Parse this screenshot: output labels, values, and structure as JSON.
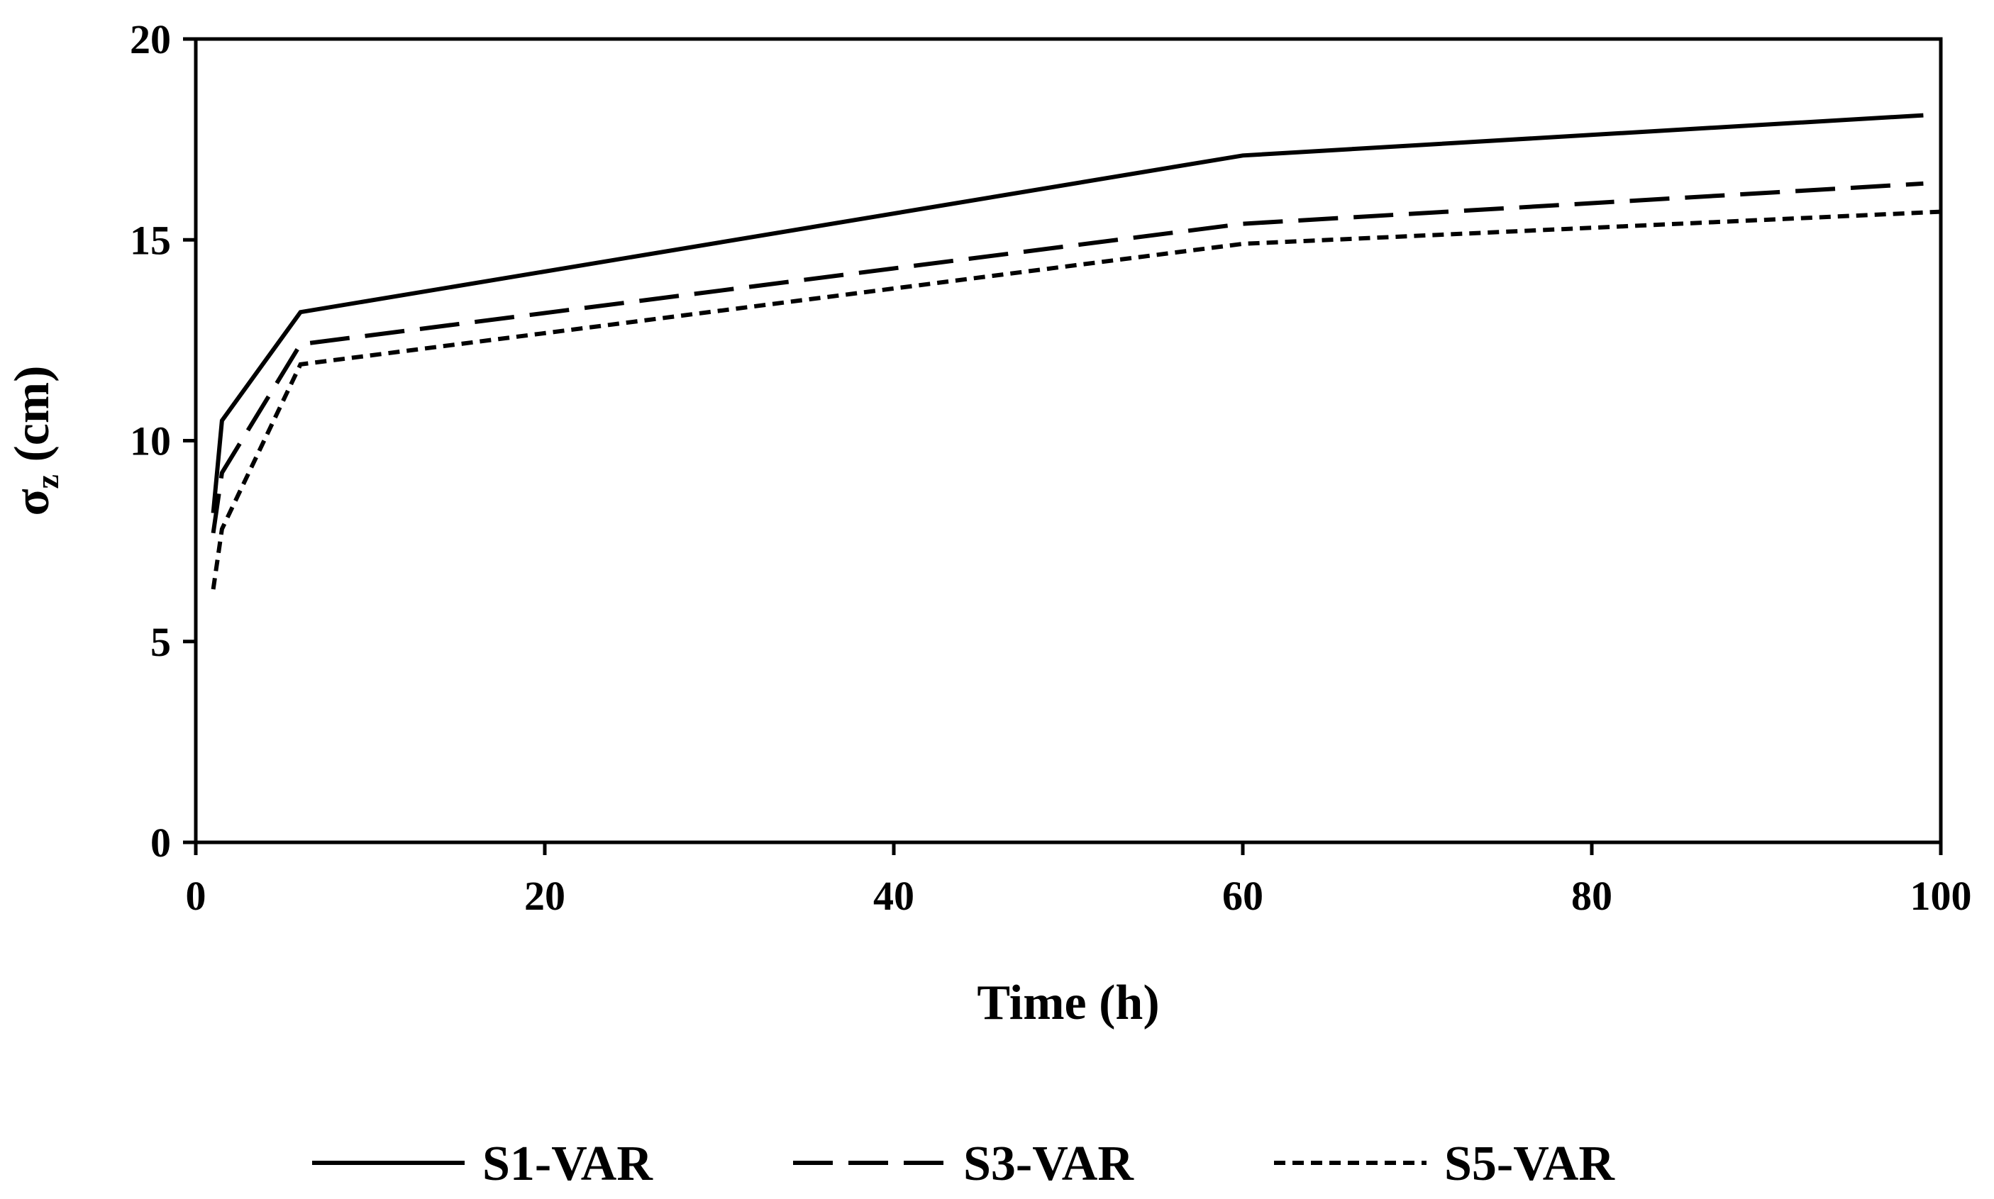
{
  "chart_data": {
    "type": "line",
    "title": "",
    "xlabel": "Time (h)",
    "ylabel_main": "σ",
    "ylabel_sub": "z",
    "ylabel_suffix": " (cm)",
    "xlim": [
      0,
      100
    ],
    "ylim": [
      0,
      20
    ],
    "xticks": [
      0,
      20,
      40,
      60,
      80,
      100
    ],
    "yticks": [
      0,
      5,
      10,
      15,
      20
    ],
    "grid": false,
    "legend_position": "bottom",
    "series": [
      {
        "name": "S1-VAR",
        "style": "solid",
        "x": [
          1,
          1.5,
          6,
          60,
          99
        ],
        "y": [
          8.2,
          10.5,
          13.2,
          17.1,
          18.1
        ]
      },
      {
        "name": "S3-VAR",
        "style": "dashed",
        "x": [
          1,
          1.5,
          6,
          60,
          99
        ],
        "y": [
          7.7,
          9.2,
          12.4,
          15.4,
          16.4
        ]
      },
      {
        "name": "S5-VAR",
        "style": "dotted",
        "x": [
          1,
          1.5,
          6,
          60,
          100
        ],
        "y": [
          6.3,
          7.8,
          11.9,
          14.9,
          15.7
        ]
      }
    ],
    "colors": {
      "line": "#000000",
      "axis": "#000000",
      "background": "#ffffff"
    }
  }
}
